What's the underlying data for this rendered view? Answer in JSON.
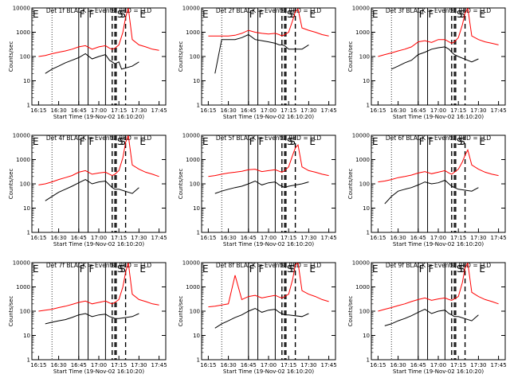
{
  "ylabel": "Counts/sec",
  "xlabel": "Start Time (19-Nov-02 16:10:20)",
  "x_tick_labels": [
    "16:15",
    "16:30",
    "16:45",
    "17:00",
    "17:15",
    "17:30",
    "17:45"
  ],
  "y_tick_labels": [
    "1",
    "10",
    "100",
    "1000",
    "10000"
  ],
  "marker_letters": [
    "E",
    "F",
    "F",
    "S",
    "S",
    "E"
  ],
  "colors": {
    "events": "#000000",
    "lld": "#ff0000",
    "axes": "#000000",
    "background": "#ffffff"
  },
  "chart_data": [
    {
      "type": "line",
      "title": "Det 1f BLACK = Events, RED = LLD",
      "xlabel": "Start Time (19-Nov-02 16:10:20)",
      "ylabel": "Counts/sec",
      "yscale": "log",
      "ylim": [
        1,
        10000
      ],
      "xlim": [
        "16:10",
        "17:50"
      ],
      "series": [
        {
          "name": "Events",
          "x": [
            "16:20",
            "16:25",
            "16:30",
            "16:35",
            "16:40",
            "16:45",
            "16:50",
            "16:55",
            "17:00",
            "17:05",
            "17:08",
            "17:10",
            "17:12",
            "17:15",
            "17:17",
            "17:25",
            "17:30"
          ],
          "values": [
            20,
            30,
            40,
            55,
            70,
            90,
            130,
            80,
            100,
            120,
            70,
            60,
            50,
            60,
            30,
            40,
            60
          ]
        },
        {
          "name": "LLD",
          "x": [
            "16:15",
            "16:20",
            "16:25",
            "16:30",
            "16:35",
            "16:40",
            "16:45",
            "16:50",
            "16:55",
            "17:00",
            "17:05",
            "17:08",
            "17:10",
            "17:12",
            "17:15",
            "17:18",
            "17:20",
            "17:22",
            "17:25",
            "17:30",
            "17:35",
            "17:40",
            "17:45"
          ],
          "values": [
            100,
            110,
            130,
            150,
            170,
            200,
            250,
            280,
            200,
            250,
            280,
            220,
            200,
            220,
            300,
            1000,
            4000,
            10000,
            500,
            300,
            250,
            200,
            180
          ]
        }
      ]
    },
    {
      "type": "line",
      "title": "Det 2f BLACK = Events, RED = LLD",
      "xlabel": "Start Time (19-Nov-02 16:10:20)",
      "ylabel": "Counts/sec",
      "yscale": "log",
      "ylim": [
        1,
        10000
      ],
      "xlim": [
        "16:10",
        "17:50"
      ],
      "series": [
        {
          "name": "Events",
          "x": [
            "16:20",
            "16:25",
            "16:30",
            "16:35",
            "16:40",
            "16:45",
            "16:50",
            "16:55",
            "17:00",
            "17:05",
            "17:08",
            "17:10",
            "17:12",
            "17:15",
            "17:25",
            "17:30"
          ],
          "values": [
            20,
            500,
            500,
            500,
            600,
            800,
            500,
            450,
            400,
            350,
            300,
            300,
            280,
            200,
            200,
            300
          ]
        },
        {
          "name": "LLD",
          "x": [
            "16:15",
            "16:20",
            "16:25",
            "16:30",
            "16:35",
            "16:40",
            "16:45",
            "16:50",
            "16:55",
            "17:00",
            "17:05",
            "17:08",
            "17:10",
            "17:12",
            "17:15",
            "17:18",
            "17:20",
            "17:22",
            "17:25",
            "17:30",
            "17:35",
            "17:40",
            "17:45"
          ],
          "values": [
            700,
            700,
            700,
            700,
            750,
            900,
            1200,
            1000,
            900,
            850,
            900,
            800,
            700,
            800,
            1000,
            3000,
            7000,
            9000,
            1500,
            1200,
            1000,
            800,
            700
          ]
        }
      ]
    },
    {
      "type": "line",
      "title": "Det 3f BLACK = Events, RED = LLD",
      "xlabel": "Start Time (19-Nov-02 16:10:20)",
      "ylabel": "Counts/sec",
      "yscale": "log",
      "ylim": [
        1,
        10000
      ],
      "xlim": [
        "16:10",
        "17:50"
      ],
      "series": [
        {
          "name": "Events",
          "x": [
            "16:25",
            "16:30",
            "16:35",
            "16:40",
            "16:45",
            "16:50",
            "16:55",
            "17:00",
            "17:05",
            "17:08",
            "17:10",
            "17:12",
            "17:15",
            "17:25",
            "17:30"
          ],
          "values": [
            30,
            40,
            55,
            70,
            120,
            150,
            200,
            230,
            250,
            200,
            150,
            120,
            100,
            60,
            80
          ]
        },
        {
          "name": "LLD",
          "x": [
            "16:15",
            "16:20",
            "16:25",
            "16:30",
            "16:35",
            "16:40",
            "16:45",
            "16:50",
            "16:55",
            "17:00",
            "17:05",
            "17:08",
            "17:10",
            "17:12",
            "17:15",
            "17:18",
            "17:20",
            "17:22",
            "17:25",
            "17:30",
            "17:35",
            "17:40",
            "17:45"
          ],
          "values": [
            100,
            120,
            140,
            170,
            200,
            250,
            400,
            450,
            380,
            500,
            500,
            400,
            350,
            400,
            600,
            2000,
            6000,
            10000,
            700,
            500,
            400,
            350,
            300
          ]
        }
      ]
    },
    {
      "type": "line",
      "title": "Det 4f BLACK = Events, RED = LLD",
      "xlabel": "Start Time (19-Nov-02 16:10:20)",
      "ylabel": "Counts/sec",
      "yscale": "log",
      "ylim": [
        1,
        10000
      ],
      "xlim": [
        "16:10",
        "17:50"
      ],
      "series": [
        {
          "name": "Events",
          "x": [
            "16:20",
            "16:25",
            "16:30",
            "16:35",
            "16:40",
            "16:45",
            "16:50",
            "16:55",
            "17:00",
            "17:05",
            "17:08",
            "17:10",
            "17:12",
            "17:15",
            "17:25",
            "17:30"
          ],
          "values": [
            20,
            30,
            45,
            60,
            80,
            110,
            150,
            100,
            120,
            130,
            90,
            70,
            60,
            60,
            40,
            70
          ]
        },
        {
          "name": "LLD",
          "x": [
            "16:15",
            "16:20",
            "16:25",
            "16:30",
            "16:35",
            "16:40",
            "16:45",
            "16:50",
            "16:55",
            "17:00",
            "17:05",
            "17:08",
            "17:10",
            "17:12",
            "17:15",
            "17:18",
            "17:20",
            "17:22",
            "17:25",
            "17:30",
            "17:35",
            "17:40",
            "17:45"
          ],
          "values": [
            90,
            100,
            120,
            150,
            180,
            220,
            300,
            350,
            250,
            280,
            300,
            250,
            220,
            250,
            350,
            1200,
            5000,
            10000,
            600,
            400,
            300,
            250,
            200
          ]
        }
      ]
    },
    {
      "type": "line",
      "title": "Det 5f BLACK = Events, RED = LLD",
      "xlabel": "Start Time (19-Nov-02 16:10:20)",
      "ylabel": "Counts/sec",
      "yscale": "log",
      "ylim": [
        1,
        10000
      ],
      "xlim": [
        "16:10",
        "17:50"
      ],
      "series": [
        {
          "name": "Events",
          "x": [
            "16:20",
            "16:25",
            "16:30",
            "16:35",
            "16:40",
            "16:45",
            "16:50",
            "16:55",
            "17:00",
            "17:05",
            "17:08",
            "17:10",
            "17:12",
            "17:15",
            "17:25",
            "17:30"
          ],
          "values": [
            40,
            50,
            60,
            70,
            80,
            100,
            130,
            90,
            110,
            120,
            90,
            80,
            70,
            80,
            100,
            120
          ]
        },
        {
          "name": "LLD",
          "x": [
            "16:15",
            "16:20",
            "16:25",
            "16:30",
            "16:35",
            "16:40",
            "16:45",
            "16:50",
            "16:55",
            "17:00",
            "17:05",
            "17:08",
            "17:10",
            "17:12",
            "17:15",
            "17:18",
            "17:20",
            "17:22",
            "17:25",
            "17:30",
            "17:35",
            "17:40",
            "17:45"
          ],
          "values": [
            200,
            220,
            250,
            280,
            300,
            330,
            380,
            400,
            320,
            350,
            380,
            330,
            300,
            350,
            500,
            1500,
            3000,
            4000,
            500,
            350,
            300,
            250,
            220
          ]
        }
      ]
    },
    {
      "type": "line",
      "title": "Det 6f BLACK = Events, RED = LLD",
      "xlabel": "Start Time (19-Nov-02 16:10:20)",
      "ylabel": "Counts/sec",
      "yscale": "log",
      "ylim": [
        1,
        10000
      ],
      "xlim": [
        "16:10",
        "17:50"
      ],
      "series": [
        {
          "name": "Events",
          "x": [
            "16:20",
            "16:25",
            "16:30",
            "16:35",
            "16:40",
            "16:45",
            "16:50",
            "16:55",
            "17:00",
            "17:05",
            "17:08",
            "17:10",
            "17:12",
            "17:15",
            "17:25",
            "17:30"
          ],
          "values": [
            15,
            30,
            50,
            60,
            70,
            90,
            120,
            100,
            110,
            140,
            100,
            80,
            70,
            60,
            50,
            70
          ]
        },
        {
          "name": "LLD",
          "x": [
            "16:15",
            "16:20",
            "16:25",
            "16:30",
            "16:35",
            "16:40",
            "16:45",
            "16:50",
            "16:55",
            "17:00",
            "17:05",
            "17:08",
            "17:10",
            "17:12",
            "17:15",
            "17:18",
            "17:20",
            "17:22",
            "17:25",
            "17:30",
            "17:35",
            "17:40",
            "17:45"
          ],
          "values": [
            120,
            130,
            150,
            180,
            200,
            230,
            280,
            320,
            260,
            300,
            350,
            280,
            250,
            300,
            400,
            800,
            1500,
            2500,
            600,
            400,
            300,
            250,
            220
          ]
        }
      ]
    },
    {
      "type": "line",
      "title": "Det 7f BLACK = Events, RED = LLD",
      "xlabel": "Start Time (19-Nov-02 16:10:20)",
      "ylabel": "Counts/sec",
      "yscale": "log",
      "ylim": [
        1,
        10000
      ],
      "xlim": [
        "16:10",
        "17:50"
      ],
      "series": [
        {
          "name": "Events",
          "x": [
            "16:20",
            "16:25",
            "16:30",
            "16:35",
            "16:40",
            "16:45",
            "16:50",
            "16:55",
            "17:00",
            "17:05",
            "17:08",
            "17:10",
            "17:12",
            "17:15",
            "17:25",
            "17:30"
          ],
          "values": [
            30,
            35,
            40,
            45,
            55,
            70,
            80,
            60,
            70,
            75,
            60,
            55,
            50,
            50,
            60,
            80
          ]
        },
        {
          "name": "LLD",
          "x": [
            "16:15",
            "16:20",
            "16:25",
            "16:30",
            "16:35",
            "16:40",
            "16:45",
            "16:50",
            "16:55",
            "17:00",
            "17:05",
            "17:08",
            "17:10",
            "17:12",
            "17:15",
            "17:18",
            "17:20",
            "17:22",
            "17:25",
            "17:30",
            "17:35",
            "17:40",
            "17:45"
          ],
          "values": [
            100,
            110,
            120,
            140,
            160,
            190,
            230,
            260,
            200,
            230,
            260,
            220,
            200,
            230,
            300,
            1000,
            4000,
            10000,
            500,
            300,
            250,
            200,
            180
          ]
        }
      ]
    },
    {
      "type": "line",
      "title": "Det 8f BLACK = Events, RED = LLD",
      "xlabel": "Start Time (19-Nov-02 16:10:20)",
      "ylabel": "Counts/sec",
      "yscale": "log",
      "ylim": [
        1,
        10000
      ],
      "xlim": [
        "16:10",
        "17:50"
      ],
      "series": [
        {
          "name": "Events",
          "x": [
            "16:20",
            "16:25",
            "16:30",
            "16:35",
            "16:40",
            "16:45",
            "16:50",
            "16:55",
            "17:00",
            "17:05",
            "17:08",
            "17:10",
            "17:12",
            "17:15",
            "17:25",
            "17:30"
          ],
          "values": [
            20,
            30,
            40,
            55,
            70,
            100,
            130,
            90,
            110,
            120,
            90,
            80,
            70,
            70,
            60,
            80
          ]
        },
        {
          "name": "LLD",
          "x": [
            "16:15",
            "16:20",
            "16:25",
            "16:30",
            "16:35",
            "16:40",
            "16:45",
            "16:50",
            "16:55",
            "17:00",
            "17:05",
            "17:08",
            "17:10",
            "17:12",
            "17:15",
            "17:18",
            "17:20",
            "17:22",
            "17:25",
            "17:30",
            "17:35",
            "17:40",
            "17:45"
          ],
          "values": [
            150,
            160,
            180,
            200,
            3000,
            300,
            400,
            450,
            350,
            400,
            450,
            380,
            350,
            400,
            500,
            2000,
            8000,
            10000,
            700,
            500,
            400,
            300,
            250
          ]
        }
      ]
    },
    {
      "type": "line",
      "title": "Det 9f BLACK = Events, RED = LLD",
      "xlabel": "Start Time (19-Nov-02 16:10:20)",
      "ylabel": "Counts/sec",
      "yscale": "log",
      "ylim": [
        1,
        10000
      ],
      "xlim": [
        "16:10",
        "17:50"
      ],
      "series": [
        {
          "name": "Events",
          "x": [
            "16:20",
            "16:25",
            "16:30",
            "16:35",
            "16:40",
            "16:45",
            "16:50",
            "16:55",
            "17:00",
            "17:05",
            "17:08",
            "17:10",
            "17:12",
            "17:15",
            "17:25",
            "17:30"
          ],
          "values": [
            25,
            30,
            40,
            50,
            65,
            90,
            120,
            80,
            100,
            110,
            80,
            70,
            60,
            60,
            40,
            70
          ]
        },
        {
          "name": "LLD",
          "x": [
            "16:15",
            "16:20",
            "16:25",
            "16:30",
            "16:35",
            "16:40",
            "16:45",
            "16:50",
            "16:55",
            "17:00",
            "17:05",
            "17:08",
            "17:10",
            "17:12",
            "17:15",
            "17:18",
            "17:20",
            "17:22",
            "17:25",
            "17:30",
            "17:35",
            "17:40",
            "17:45"
          ],
          "values": [
            100,
            120,
            140,
            170,
            200,
            250,
            300,
            350,
            280,
            320,
            350,
            300,
            280,
            320,
            400,
            1500,
            6000,
            10000,
            600,
            400,
            300,
            250,
            200
          ]
        }
      ]
    }
  ]
}
